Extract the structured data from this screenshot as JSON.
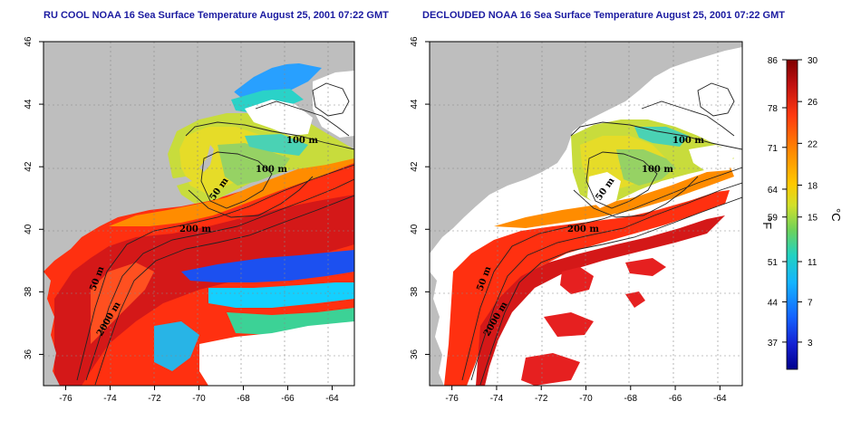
{
  "titles": {
    "left": "RU COOL NOAA 16 Sea Surface Temperature August 25, 2001 07:22 GMT",
    "right": "DECLOUDED NOAA 16 Sea Surface Temperature August 25, 2001 07:22 GMT"
  },
  "map": {
    "lon_ticks": [
      "-76",
      "-74",
      "-72",
      "-70",
      "-68",
      "-66",
      "-64"
    ],
    "lat_ticks": [
      "36",
      "38",
      "40",
      "42",
      "44",
      "46"
    ],
    "lon_range": [
      -77,
      -63
    ],
    "lat_range": [
      35,
      46
    ]
  },
  "contours": {
    "left": [
      "100 m",
      "100 m",
      "50 m",
      "200 m",
      "50 m",
      "2000 m"
    ],
    "right": [
      "100 m",
      "100 m",
      "50 m",
      "200 m",
      "50 m",
      "2000 m"
    ]
  },
  "colorbar": {
    "fahrenheit_ticks": [
      "86",
      "78",
      "71",
      "64",
      "59",
      "51",
      "44",
      "37"
    ],
    "celsius_ticks": [
      "30",
      "26",
      "22",
      "18",
      "15",
      "11",
      "7",
      "3"
    ],
    "fahrenheit_unit": "°F",
    "celsius_unit": "°C",
    "colors": [
      "#7f0000",
      "#d41a1a",
      "#ff4a1a",
      "#ff8c00",
      "#ffc000",
      "#e0e02a",
      "#8cd24a",
      "#2ad2b4",
      "#14c8ff",
      "#1478ff",
      "#1428d2",
      "#00008c"
    ]
  },
  "colors": {
    "land": "#bebebe",
    "cloud": "#ffffff",
    "title": "#1a1aa0"
  }
}
